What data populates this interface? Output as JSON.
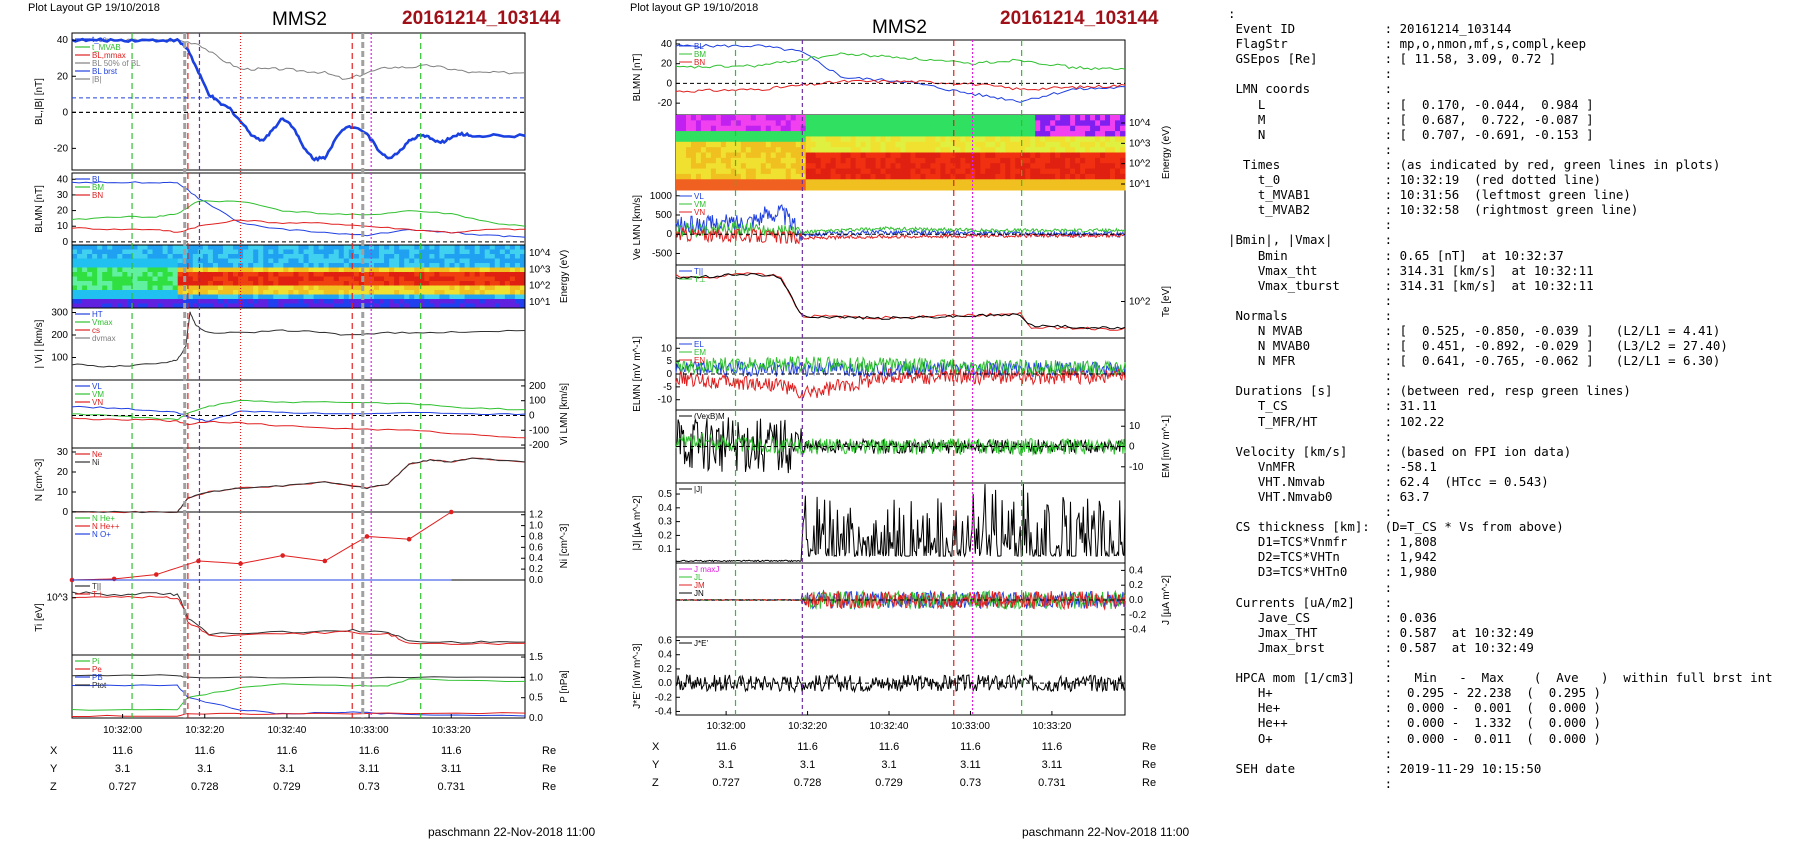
{
  "left_figure": {
    "header": "Plot Layout GP 19/10/2018",
    "spacecraft": "MMS2",
    "event_id": "20161214_103144",
    "footer": "paschmann 22-Nov-2018 11:00",
    "x_ticks": [
      "10:32:00",
      "10:32:20",
      "10:32:40",
      "10:33:00",
      "10:33:20"
    ],
    "pos_rows": [
      {
        "label": "X",
        "values": [
          "11.6",
          "11.6",
          "11.6",
          "11.6",
          "11.6"
        ],
        "unit": "Re"
      },
      {
        "label": "Y",
        "values": [
          "3.1",
          "3.1",
          "3.1",
          "3.11",
          "3.11"
        ],
        "unit": "Re"
      },
      {
        "label": "Z",
        "values": [
          "0.727",
          "0.728",
          "0.729",
          "0.73",
          "0.731"
        ],
        "unit": "Re"
      }
    ]
  },
  "right_figure": {
    "header": "Plot layout GP 19/10/2018",
    "spacecraft": "MMS2",
    "event_id": "20161214_103144",
    "footer": "paschmann 22-Nov-2018 11:00",
    "x_ticks": [
      "10:32:00",
      "10:32:20",
      "10:32:40",
      "10:33:00",
      "10:33:20"
    ],
    "pos_rows": [
      {
        "label": "X",
        "values": [
          "11.6",
          "11.6",
          "11.6",
          "11.6",
          "11.6"
        ],
        "unit": "Re"
      },
      {
        "label": "Y",
        "values": [
          "3.1",
          "3.1",
          "3.1",
          "3.11",
          "3.11"
        ],
        "unit": "Re"
      },
      {
        "label": "Z",
        "values": [
          "0.727",
          "0.728",
          "0.729",
          "0.73",
          "0.731"
        ],
        "unit": "Re"
      }
    ]
  },
  "chart_data": [
    {
      "type": "line",
      "panel": "BL |B|",
      "ylabel": "BL,|B| [nT]",
      "ylim": [
        -32,
        44
      ],
      "ticks": [
        "40",
        "20",
        "0",
        "-20"
      ],
      "legend": [
        "t_cs",
        "t_MVAB",
        "BL,mmax",
        "BL 50% of BL",
        "BL brst",
        "|B|"
      ],
      "series": [
        {
          "name": "|B|",
          "color": "#808080",
          "x": [
            0,
            20,
            40,
            60,
            80,
            100,
            120,
            140,
            160,
            180,
            200,
            220,
            240,
            260,
            280,
            300,
            320,
            340,
            360,
            380,
            400,
            430
          ],
          "values": [
            40,
            40,
            40,
            40,
            40,
            40,
            38,
            30,
            24,
            24,
            24,
            23,
            22,
            18,
            22,
            25,
            25,
            26,
            24,
            22,
            22,
            22
          ]
        },
        {
          "name": "BL",
          "color": "#1a40e0",
          "x": [
            0,
            20,
            40,
            60,
            80,
            100,
            110,
            120,
            130,
            140,
            150,
            160,
            170,
            180,
            190,
            200,
            210,
            220,
            230,
            240,
            250,
            260,
            270,
            280,
            290,
            300,
            310,
            320,
            330,
            340,
            350,
            360,
            370,
            380,
            400,
            430
          ],
          "values": [
            40,
            40,
            40,
            40,
            40,
            40,
            35,
            22,
            10,
            5,
            2,
            -5,
            -12,
            -16,
            -10,
            -3,
            -8,
            -20,
            -26,
            -25,
            -15,
            -8,
            -8,
            -12,
            -20,
            -26,
            -22,
            -16,
            -13,
            -14,
            -17,
            -14,
            -12,
            -13,
            -13,
            -13
          ]
        }
      ]
    },
    {
      "type": "line",
      "panel": "BLMN",
      "ylabel": "BLMN [nT]",
      "ylim": [
        -2,
        44
      ],
      "ticks": [
        "40",
        "30",
        "20",
        "10",
        "0"
      ],
      "legend": [
        "BL",
        "BM",
        "BN"
      ],
      "series": [
        {
          "name": "BL",
          "color": "#2040e0",
          "x": [
            0,
            40,
            80,
            100,
            120,
            160,
            200,
            240,
            280,
            320,
            360,
            400,
            430
          ],
          "values": [
            38,
            38,
            38,
            38,
            28,
            12,
            8,
            6,
            4,
            8,
            6,
            4,
            3
          ]
        },
        {
          "name": "BM",
          "color": "#30c030",
          "x": [
            0,
            40,
            80,
            100,
            120,
            160,
            200,
            240,
            280,
            320,
            360,
            400,
            430
          ],
          "values": [
            14,
            16,
            16,
            18,
            26,
            26,
            20,
            18,
            17,
            20,
            18,
            12,
            10
          ]
        },
        {
          "name": "BN",
          "color": "#e02020",
          "x": [
            0,
            40,
            80,
            100,
            120,
            160,
            200,
            240,
            280,
            320,
            360,
            400,
            430
          ],
          "values": [
            9,
            8,
            8,
            6,
            10,
            14,
            12,
            12,
            10,
            8,
            6,
            8,
            8
          ]
        }
      ]
    },
    {
      "type": "heatmap",
      "panel": "ion energy spectrogram",
      "ylabel": "Energy (eV)",
      "ticks": [
        "10^4",
        "10^3",
        "10^2",
        "10^1"
      ]
    },
    {
      "type": "line",
      "panel": "|Vi|",
      "ylabel": "| Vi | [km/s]",
      "ylim": [
        0,
        320
      ],
      "ticks": [
        "300",
        "200",
        "100"
      ],
      "legend": [
        "HT",
        "Vmax",
        "cs",
        "dvmax"
      ],
      "series": [
        {
          "name": "|Vi|",
          "color": "#303030",
          "x": [
            0,
            30,
            60,
            90,
            100,
            108,
            112,
            118,
            130,
            160,
            200,
            230,
            260,
            300,
            340,
            380,
            430
          ],
          "values": [
            70,
            60,
            65,
            80,
            90,
            150,
            300,
            240,
            210,
            210,
            220,
            215,
            200,
            210,
            210,
            215,
            220
          ]
        }
      ]
    },
    {
      "type": "line",
      "panel": "ViLMN",
      "ylabel": "Vi LMN [km/s]",
      "ylim": [
        -220,
        240
      ],
      "ticks": [
        "200",
        "100",
        "0",
        "-100",
        "-200"
      ],
      "legend": [
        "VL",
        "VM",
        "VN"
      ],
      "series": [
        {
          "name": "VL",
          "color": "#2040e0",
          "x": [
            0,
            40,
            80,
            100,
            110,
            130,
            160,
            200,
            260,
            320,
            380,
            430
          ],
          "values": [
            60,
            50,
            30,
            20,
            -10,
            -40,
            30,
            20,
            10,
            20,
            10,
            10
          ]
        },
        {
          "name": "VM",
          "color": "#30c030",
          "x": [
            0,
            40,
            80,
            100,
            110,
            130,
            160,
            200,
            260,
            320,
            380,
            430
          ],
          "values": [
            10,
            0,
            -20,
            -30,
            20,
            60,
            100,
            90,
            90,
            80,
            50,
            40
          ]
        },
        {
          "name": "VN",
          "color": "#e02020",
          "x": [
            0,
            40,
            80,
            100,
            110,
            130,
            160,
            200,
            260,
            320,
            380,
            430
          ],
          "values": [
            -20,
            -30,
            -30,
            -40,
            -60,
            -40,
            -50,
            -70,
            -90,
            -100,
            -130,
            -150
          ]
        }
      ]
    },
    {
      "type": "line",
      "panel": "N",
      "ylabel": "N [cm^-3]",
      "ylim": [
        0,
        32
      ],
      "ticks": [
        "30",
        "20",
        "10",
        "0"
      ],
      "legend": [
        "Ne",
        "Ni"
      ],
      "series": [
        {
          "name": "Ne",
          "color": "#e02020",
          "x": [
            0,
            60,
            100,
            110,
            130,
            160,
            200,
            240,
            280,
            300,
            320,
            340,
            360,
            380,
            430
          ],
          "values": [
            0,
            0,
            0,
            7,
            10,
            12,
            13,
            15,
            12,
            14,
            24,
            26,
            25,
            27,
            25
          ]
        },
        {
          "name": "Ni",
          "color": "#303030",
          "x": [
            0,
            60,
            100,
            110,
            130,
            160,
            200,
            240,
            280,
            300,
            320,
            340,
            360,
            380,
            430
          ],
          "values": [
            0,
            0,
            0,
            7,
            10,
            12,
            13,
            15,
            12,
            14,
            24,
            26,
            25,
            27,
            25
          ]
        }
      ]
    },
    {
      "type": "line",
      "panel": "Ni HPCA",
      "ylabel": "Ni [cm^-3]",
      "ylim": [
        0,
        1.25
      ],
      "ticks": [
        "1.2",
        "1.0",
        "0.8",
        "0.6",
        "0.4",
        "0.2",
        "0.0"
      ],
      "legend": [
        "N He+",
        "N He++",
        "N O+"
      ],
      "series": [
        {
          "name": "N He++",
          "color": "#e02020",
          "x": [
            0,
            40,
            80,
            120,
            160,
            200,
            240,
            280,
            320,
            360
          ],
          "values": [
            0.0,
            0.02,
            0.1,
            0.35,
            0.3,
            0.45,
            0.35,
            0.8,
            0.75,
            1.25
          ]
        },
        {
          "name": "N He+",
          "color": "#30c030",
          "x": [
            0,
            120,
            240,
            360
          ],
          "values": [
            0,
            0,
            0,
            0
          ]
        },
        {
          "name": "N O+",
          "color": "#2040e0",
          "x": [
            0,
            120,
            240,
            360
          ],
          "values": [
            0,
            0,
            0,
            0
          ]
        }
      ]
    },
    {
      "type": "line",
      "panel": "Ti",
      "ylabel": "Ti [eV]",
      "ticks": [
        "10^3"
      ],
      "legend": [
        "T||",
        "T⊥"
      ],
      "series": [
        {
          "name": "T||",
          "color": "#303030",
          "x": [
            0,
            40,
            80,
            100,
            110,
            130,
            200,
            260,
            300,
            320,
            380,
            430
          ],
          "values": [
            1200,
            1100,
            1150,
            1100,
            500,
            300,
            320,
            340,
            320,
            240,
            230,
            230
          ]
        },
        {
          "name": "T⊥",
          "color": "#e02020",
          "x": [
            0,
            40,
            80,
            100,
            110,
            130,
            200,
            260,
            300,
            320,
            380,
            430
          ],
          "values": [
            1000,
            1050,
            1000,
            1000,
            450,
            280,
            300,
            320,
            300,
            220,
            220,
            220
          ]
        }
      ]
    },
    {
      "type": "line",
      "panel": "P",
      "ylabel": "P [nPa]",
      "ylim": [
        0,
        1.55
      ],
      "ticks": [
        "1.5",
        "1.0",
        "0.5",
        "0.0"
      ],
      "legend": [
        "Pi",
        "Pe",
        "PB",
        "Ptot"
      ],
      "series": [
        {
          "name": "Ptot",
          "color": "#303030",
          "x": [
            0,
            100,
            110,
            200,
            300,
            430
          ],
          "values": [
            1.05,
            1.05,
            1.0,
            1.0,
            1.0,
            1.0
          ]
        },
        {
          "name": "PB",
          "color": "#2040e0",
          "x": [
            0,
            100,
            110,
            160,
            200,
            260,
            300,
            430
          ],
          "values": [
            0.8,
            0.8,
            0.5,
            0.2,
            0.1,
            0.15,
            0.1,
            0.05
          ]
        },
        {
          "name": "Pi",
          "color": "#30c030",
          "x": [
            0,
            100,
            110,
            160,
            200,
            260,
            300,
            320,
            430
          ],
          "values": [
            0.2,
            0.2,
            0.5,
            0.75,
            0.85,
            0.8,
            0.8,
            0.95,
            0.9
          ]
        },
        {
          "name": "Pe",
          "color": "#e02020",
          "x": [
            0,
            100,
            110,
            200,
            300,
            430
          ],
          "values": [
            0.05,
            0.05,
            0.1,
            0.1,
            0.12,
            0.12
          ]
        }
      ]
    }
  ],
  "right_panels": [
    {
      "ylabel": "BLMN [nT]",
      "ticks": [
        "40",
        "20",
        "0",
        "-20"
      ],
      "legend": [
        "BL",
        "BM",
        "BN"
      ]
    },
    {
      "ylabel": "Energy (eV)",
      "ticks": [
        "10^4",
        "10^3",
        "10^2",
        "10^1"
      ]
    },
    {
      "ylabel": "Ve LMN [km/s]",
      "ticks": [
        "1000",
        "500",
        "0",
        "-500"
      ],
      "legend": [
        "VL",
        "VM",
        "VN"
      ]
    },
    {
      "ylabel": "Te [eV]",
      "ticks": [
        "10^2"
      ],
      "legend": [
        "T||",
        "T⊥"
      ]
    },
    {
      "ylabel": "ELMN [mV m^-1]",
      "ticks": [
        "10",
        "5",
        "0",
        "-5",
        "-10"
      ],
      "legend": [
        "EL",
        "EM",
        "EN"
      ]
    },
    {
      "ylabel": "EM [mV m^-1]",
      "ticks": [
        "10",
        "0",
        "-10"
      ],
      "legend": [
        "(VexB)M"
      ]
    },
    {
      "ylabel": "|J| [µA m^-2]",
      "ticks": [
        "0.5",
        "0.4",
        "0.3",
        "0.2",
        "0.1"
      ],
      "legend": [
        "|J|"
      ]
    },
    {
      "ylabel": "J [µA m^-2]",
      "ticks": [
        "0.4",
        "0.2",
        "0.0",
        "-0.2",
        "-0.4"
      ],
      "legend": [
        "J maxJ",
        "JL",
        "JM",
        "JN"
      ]
    },
    {
      "ylabel": "J*E' [nW m^-3]",
      "ticks": [
        "0.6",
        "0.4",
        "0.2",
        "0.0",
        "-0.2",
        "-0.4"
      ],
      "legend": [
        "J*E'"
      ]
    }
  ],
  "info_lines": [
    ":",
    " Event ID            : 20161214_103144",
    " FlagStr             : mp,o,nmon,mf,s,compl,keep",
    " GSEpos [Re]         : [ 11.58, 3.09, 0.72 ]",
    "                     :",
    " LMN coords          :",
    "    L                : [  0.170, -0.044,  0.984 ]",
    "    M                : [  0.687,  0.722, -0.087 ]",
    "    N                : [  0.707, -0.691, -0.153 ]",
    "                     :",
    "  Times              : (as indicated by red, green lines in plots)",
    "    t_0              : 10:32:19  (red dotted line)",
    "    t_MVAB1          : 10:31:56  (leftmost green line)",
    "    t_MVAB2          : 10:32:58  (rightmost green line)",
    "                     :",
    "|Bmin|, |Vmax|       :",
    "    Bmin             : 0.65 [nT]  at 10:32:37",
    "    Vmax_tht         : 314.31 [km/s]  at 10:32:11",
    "    Vmax_tburst      : 314.31 [km/s]  at 10:32:11",
    "                     :",
    " Normals             :",
    "    N MVAB           : [  0.525, -0.850, -0.039 ]   (L2/L1 = 4.41)",
    "    N MVAB0          : [  0.451, -0.892, -0.029 ]   (L3/L2 = 27.40)",
    "    N MFR            : [  0.641, -0.765, -0.062 ]   (L2/L1 = 6.30)",
    "                     :",
    " Durations [s]       : (between red, resp green lines)",
    "    T_CS             : 31.11",
    "    T_MFR/HT         : 102.22",
    "                     :",
    " Velocity [km/s]     : (based on FPI ion data)",
    "    VnMFR            : -58.1",
    "    VHT.Nmvab        : 62.4  (HTcc = 0.543)",
    "    VHT.Nmvab0       : 63.7",
    "                     :",
    " CS thickness [km]:  (D=T_CS * Vs from above)",
    "    D1=TCS*Vnmfr     : 1,808",
    "    D2=TCS*VHTn      : 1,942",
    "    D3=TCS*VHTn0     : 1,980",
    "                     :",
    " Currents [uA/m2]    :",
    "    Jave_CS          : 0.036",
    "    Jmax_THT         : 0.587  at 10:32:49",
    "    Jmax_brst        : 0.587  at 10:32:49",
    "                     :",
    " HPCA mom [1/cm3]    :   Min   -  Max    (  Ave   )  within full brst int",
    "    H+               :  0.295 - 22.238  (  0.295 )",
    "    He+              :  0.000 -  0.001  (  0.000 )",
    "    He++             :  0.000 -  1.332  (  0.000 )",
    "    O+               :  0.000 -  0.011  (  0.000 )",
    "                     :",
    " SEH date            : 2019-11-29 10:15:50",
    "                     :"
  ]
}
